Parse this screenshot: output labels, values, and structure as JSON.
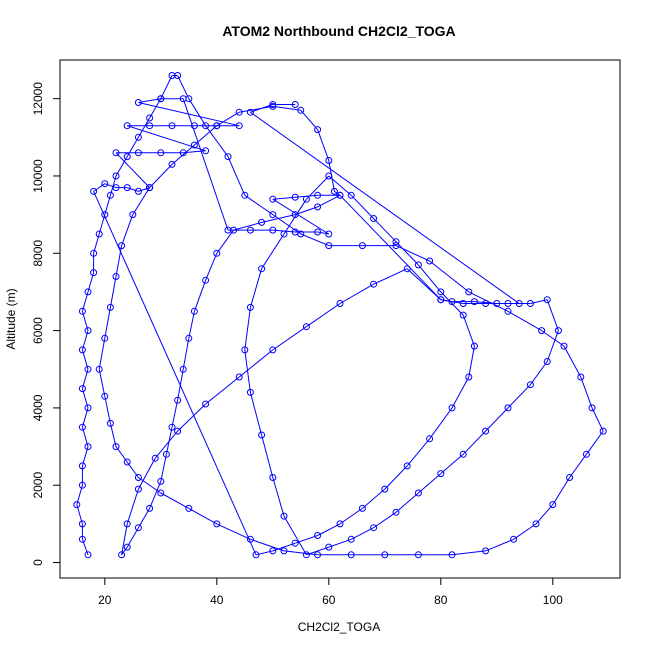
{
  "chart_data": {
    "type": "scatter",
    "title": "ATOM2 Northbound CH2Cl2_TOGA",
    "xlabel": "CH2Cl2_TOGA",
    "ylabel": "Altitude (m)",
    "xlim": [
      12,
      112
    ],
    "ylim": [
      -400,
      13000
    ],
    "x_ticks": [
      20,
      40,
      60,
      80,
      100
    ],
    "y_ticks": [
      0,
      2000,
      4000,
      6000,
      8000,
      10000,
      12000
    ],
    "grid": false,
    "legend": "none",
    "series": [
      {
        "color": "#0000ff",
        "marker": "open-circle",
        "connected": true,
        "points": [
          [
            17,
            200
          ],
          [
            16,
            600
          ],
          [
            16,
            1000
          ],
          [
            15,
            1500
          ],
          [
            16,
            2000
          ],
          [
            16,
            2500
          ],
          [
            17,
            3000
          ],
          [
            16,
            3500
          ],
          [
            17,
            4000
          ],
          [
            16,
            4500
          ],
          [
            17,
            5000
          ],
          [
            16,
            5500
          ],
          [
            17,
            6000
          ],
          [
            16,
            6500
          ],
          [
            17,
            7000
          ],
          [
            18,
            7500
          ],
          [
            18,
            8000
          ],
          [
            19,
            8500
          ],
          [
            20,
            9000
          ],
          [
            21,
            9500
          ],
          [
            22,
            10000
          ],
          [
            24,
            10500
          ],
          [
            26,
            11000
          ],
          [
            28,
            11500
          ],
          [
            30,
            12000
          ],
          [
            32,
            12600
          ],
          [
            33,
            12600
          ],
          [
            35,
            12000
          ],
          [
            38,
            11300
          ],
          [
            42,
            10500
          ],
          [
            45,
            9500
          ],
          [
            50,
            9000
          ],
          [
            55,
            8500
          ],
          [
            60,
            8200
          ],
          [
            66,
            8200
          ],
          [
            72,
            8200
          ],
          [
            78,
            7800
          ],
          [
            85,
            7000
          ],
          [
            92,
            6500
          ],
          [
            98,
            6000
          ],
          [
            102,
            5600
          ],
          [
            105,
            4800
          ],
          [
            107,
            4000
          ],
          [
            109,
            3400
          ],
          [
            106,
            2800
          ],
          [
            103,
            2200
          ],
          [
            100,
            1500
          ],
          [
            97,
            1000
          ],
          [
            93,
            600
          ],
          [
            88,
            300
          ],
          [
            82,
            200
          ],
          [
            76,
            200
          ],
          [
            70,
            200
          ],
          [
            64,
            200
          ],
          [
            58,
            200
          ],
          [
            52,
            300
          ],
          [
            46,
            600
          ],
          [
            40,
            1000
          ],
          [
            35,
            1400
          ],
          [
            30,
            1800
          ],
          [
            26,
            2200
          ],
          [
            24,
            2600
          ],
          [
            22,
            3000
          ],
          [
            21,
            3600
          ],
          [
            20,
            4300
          ],
          [
            19,
            5000
          ],
          [
            20,
            5800
          ],
          [
            21,
            6600
          ],
          [
            22,
            7400
          ],
          [
            23,
            8200
          ],
          [
            25,
            9000
          ],
          [
            28,
            9700
          ],
          [
            32,
            10300
          ],
          [
            36,
            10800
          ],
          [
            40,
            11300
          ],
          [
            44,
            11650
          ],
          [
            50,
            11800
          ],
          [
            55,
            11700
          ],
          [
            58,
            11200
          ],
          [
            60,
            10400
          ],
          [
            61,
            9600
          ],
          [
            62,
            9500
          ],
          [
            58,
            9200
          ],
          [
            54,
            9000
          ],
          [
            48,
            8800
          ],
          [
            43,
            8600
          ],
          [
            40,
            8000
          ],
          [
            38,
            7300
          ],
          [
            36,
            6500
          ],
          [
            35,
            5800
          ],
          [
            34,
            5000
          ],
          [
            33,
            4200
          ],
          [
            32,
            3500
          ],
          [
            31,
            2800
          ],
          [
            30,
            2100
          ],
          [
            28,
            1400
          ],
          [
            26,
            900
          ],
          [
            24,
            400
          ],
          [
            23,
            200
          ],
          [
            24,
            1000
          ],
          [
            26,
            1900
          ],
          [
            29,
            2700
          ],
          [
            33,
            3400
          ],
          [
            38,
            4100
          ],
          [
            44,
            4800
          ],
          [
            50,
            5500
          ],
          [
            56,
            6100
          ],
          [
            62,
            6700
          ],
          [
            68,
            7200
          ],
          [
            74,
            7600
          ],
          [
            80,
            6800
          ],
          [
            84,
            6700
          ],
          [
            88,
            6700
          ],
          [
            92,
            6700
          ],
          [
            96,
            6700
          ],
          [
            99,
            6800
          ],
          [
            101,
            6000
          ],
          [
            99,
            5200
          ],
          [
            96,
            4600
          ],
          [
            92,
            4000
          ],
          [
            88,
            3400
          ],
          [
            84,
            2800
          ],
          [
            80,
            2300
          ],
          [
            76,
            1800
          ],
          [
            72,
            1300
          ],
          [
            68,
            900
          ],
          [
            64,
            600
          ],
          [
            60,
            400
          ],
          [
            56,
            200
          ],
          [
            52,
            1200
          ],
          [
            50,
            2200
          ],
          [
            48,
            3300
          ],
          [
            46,
            4400
          ],
          [
            45,
            5500
          ],
          [
            46,
            6600
          ],
          [
            48,
            7600
          ],
          [
            52,
            8500
          ],
          [
            56,
            9400
          ],
          [
            60,
            10000
          ],
          [
            64,
            9500
          ],
          [
            68,
            8900
          ],
          [
            72,
            8300
          ],
          [
            76,
            7700
          ],
          [
            80,
            7000
          ],
          [
            84,
            6400
          ],
          [
            86,
            5600
          ],
          [
            85,
            4800
          ],
          [
            82,
            4000
          ],
          [
            78,
            3200
          ],
          [
            74,
            2500
          ],
          [
            70,
            1900
          ],
          [
            66,
            1400
          ],
          [
            62,
            1000
          ],
          [
            58,
            700
          ],
          [
            54,
            500
          ],
          [
            50,
            300
          ],
          [
            47,
            200
          ],
          [
            18,
            9600
          ],
          [
            20,
            9800
          ],
          [
            22,
            9700
          ],
          [
            24,
            9700
          ],
          [
            26,
            9600
          ],
          [
            28,
            9700
          ],
          [
            22,
            10600
          ],
          [
            26,
            10600
          ],
          [
            30,
            10600
          ],
          [
            34,
            10600
          ],
          [
            38,
            10650
          ],
          [
            24,
            11300
          ],
          [
            28,
            11300
          ],
          [
            32,
            11300
          ],
          [
            36,
            11300
          ],
          [
            40,
            11300
          ],
          [
            44,
            11300
          ],
          [
            26,
            11900
          ],
          [
            30,
            12000
          ],
          [
            34,
            12000
          ],
          [
            42,
            8600
          ],
          [
            46,
            8600
          ],
          [
            50,
            8600
          ],
          [
            54,
            8550
          ],
          [
            58,
            8550
          ],
          [
            60,
            8500
          ],
          [
            50,
            9400
          ],
          [
            54,
            9450
          ],
          [
            58,
            9500
          ],
          [
            62,
            9500
          ],
          [
            80,
            6800
          ],
          [
            82,
            6750
          ],
          [
            86,
            6750
          ],
          [
            90,
            6700
          ],
          [
            94,
            6700
          ],
          [
            46,
            11650
          ],
          [
            50,
            11850
          ],
          [
            54,
            11850
          ]
        ]
      }
    ]
  }
}
